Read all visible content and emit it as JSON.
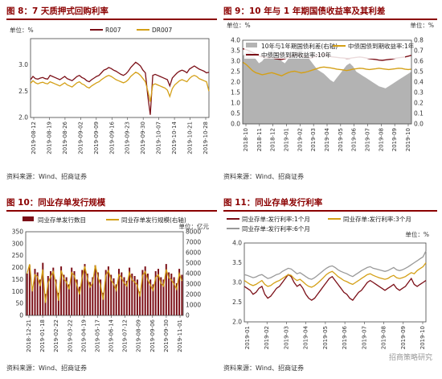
{
  "panels": [
    {
      "title": "图 8：7 天质押式回购利率",
      "source": "资料来源：Wind、招商证券",
      "chart_data": {
        "type": "line",
        "unit": "单位：%",
        "x_ticks": [
          "2019-08-12",
          "2019-08-19",
          "2019-08-26",
          "2019-09-02",
          "2019-09-09",
          "2019-09-16",
          "2019-09-23",
          "2019-09-30",
          "2019-10-07",
          "2019-10-14",
          "2019-10-21",
          "2019-10-28"
        ],
        "ylim": [
          2.0,
          3.5
        ],
        "y_ticks": [
          2.0,
          2.5,
          3.0,
          3.5
        ],
        "legend": "top",
        "series": [
          {
            "name": "R007",
            "color": "#7b0f17",
            "values": [
              2.72,
              2.78,
              2.74,
              2.73,
              2.75,
              2.76,
              2.74,
              2.73,
              2.8,
              2.78,
              2.76,
              2.74,
              2.72,
              2.75,
              2.78,
              2.74,
              2.72,
              2.7,
              2.74,
              2.78,
              2.8,
              2.76,
              2.74,
              2.7,
              2.68,
              2.72,
              2.75,
              2.78,
              2.8,
              2.85,
              2.9,
              2.92,
              2.95,
              2.93,
              2.9,
              2.88,
              2.85,
              2.82,
              2.8,
              2.83,
              2.88,
              2.95,
              3.0,
              3.05,
              3.02,
              2.98,
              2.9,
              2.85,
              2.4,
              2.05,
              2.8,
              2.82,
              2.8,
              2.78,
              2.76,
              2.74,
              2.72,
              2.6,
              2.75,
              2.8,
              2.85,
              2.88,
              2.9,
              2.88,
              2.85,
              2.92,
              2.95,
              2.98,
              2.95,
              2.92,
              2.9,
              2.88,
              2.85,
              2.86
            ]
          },
          {
            "name": "DR007",
            "color": "#d4a017",
            "values": [
              2.65,
              2.7,
              2.66,
              2.64,
              2.66,
              2.67,
              2.65,
              2.64,
              2.68,
              2.66,
              2.64,
              2.62,
              2.6,
              2.63,
              2.66,
              2.62,
              2.6,
              2.58,
              2.62,
              2.66,
              2.68,
              2.64,
              2.62,
              2.58,
              2.56,
              2.6,
              2.63,
              2.66,
              2.68,
              2.72,
              2.75,
              2.78,
              2.8,
              2.78,
              2.75,
              2.72,
              2.7,
              2.68,
              2.66,
              2.68,
              2.72,
              2.78,
              2.82,
              2.86,
              2.84,
              2.8,
              2.74,
              2.68,
              2.5,
              2.3,
              2.62,
              2.64,
              2.62,
              2.6,
              2.58,
              2.56,
              2.52,
              2.4,
              2.55,
              2.62,
              2.66,
              2.7,
              2.72,
              2.7,
              2.68,
              2.74,
              2.78,
              2.8,
              2.78,
              2.74,
              2.72,
              2.7,
              2.68,
              2.5
            ]
          }
        ]
      }
    },
    {
      "title": "图 9：10 年与 1 年期国债收益率及其利差",
      "source": "资料来源：Wind、招商证券",
      "chart_data": {
        "type": "area",
        "unit": "单位：%",
        "x_ticks": [
          "2018-10",
          "2018-11",
          "2018-12",
          "2019-01",
          "2019-02",
          "2019-03",
          "2019-04",
          "2019-05",
          "2019-06",
          "2019-07",
          "2019-08",
          "2019-09",
          "2019-10"
        ],
        "ylim_left": [
          0.0,
          4.0
        ],
        "y_ticks_left": [
          0.0,
          0.5,
          1.0,
          1.5,
          2.0,
          2.5,
          3.0,
          3.5,
          4.0
        ],
        "ylim_right": [
          0.0,
          0.8
        ],
        "y_ticks_right": [
          0.0,
          0.1,
          0.2,
          0.3,
          0.4,
          0.5,
          0.6,
          0.7,
          0.8
        ],
        "legend": "top",
        "series": [
          {
            "name": "10年与1年期国债利差(右轴)",
            "color": "#b3b3b3",
            "axis": "right",
            "values": [
              0.65,
              0.68,
              0.7,
              0.66,
              0.62,
              0.58,
              0.6,
              0.64,
              0.68,
              0.72,
              0.7,
              0.66,
              0.6,
              0.58,
              0.62,
              0.66,
              0.7,
              0.74,
              0.72,
              0.68,
              0.64,
              0.6,
              0.56,
              0.52,
              0.5,
              0.48,
              0.45,
              0.42,
              0.4,
              0.44,
              0.48,
              0.52,
              0.56,
              0.58,
              0.55,
              0.5,
              0.48,
              0.46,
              0.44,
              0.42,
              0.4,
              0.38,
              0.36,
              0.35,
              0.34,
              0.36,
              0.38,
              0.4,
              0.42,
              0.44,
              0.46,
              0.48,
              0.5
            ]
          },
          {
            "name": "中债国债到期收益率:1年",
            "color": "#d4a017",
            "axis": "left",
            "values": [
              2.95,
              2.85,
              2.7,
              2.55,
              2.45,
              2.4,
              2.35,
              2.38,
              2.42,
              2.45,
              2.4,
              2.35,
              2.3,
              2.38,
              2.45,
              2.5,
              2.52,
              2.48,
              2.44,
              2.46,
              2.5,
              2.55,
              2.6,
              2.65,
              2.7,
              2.72,
              2.7,
              2.68,
              2.65,
              2.62,
              2.6,
              2.58,
              2.55,
              2.58,
              2.62,
              2.64,
              2.66,
              2.65,
              2.62,
              2.6,
              2.62,
              2.64,
              2.66,
              2.64,
              2.62,
              2.6,
              2.62,
              2.64,
              2.66,
              2.65,
              2.62,
              2.6,
              2.62
            ]
          },
          {
            "name": "中债国债到期收益率:10年",
            "color": "#7b0f17",
            "axis": "left",
            "values": [
              3.6,
              3.55,
              3.5,
              3.42,
              3.35,
              3.25,
              3.2,
              3.18,
              3.15,
              3.18,
              3.12,
              3.1,
              3.08,
              3.12,
              3.18,
              3.22,
              3.28,
              3.3,
              3.25,
              3.22,
              3.18,
              3.15,
              3.2,
              3.28,
              3.32,
              3.3,
              3.26,
              3.22,
              3.2,
              3.18,
              3.16,
              3.15,
              3.13,
              3.14,
              3.16,
              3.18,
              3.2,
              3.18,
              3.15,
              3.12,
              3.1,
              3.08,
              3.05,
              3.04,
              3.06,
              3.08,
              3.1,
              3.14,
              3.16,
              3.18,
              3.2,
              3.24,
              3.28
            ]
          }
        ]
      }
    },
    {
      "title": "图 10：同业存单发行规模",
      "source": "资料来源：Wind、招商证券",
      "chart_data": {
        "type": "bar",
        "unit": "单位：亿元",
        "x_ticks": [
          "2018-12-21",
          "2019-01-18",
          "2019-02-22",
          "2019-03-22",
          "2019-04-19",
          "2019-05-17",
          "2019-06-14",
          "2019-07-12",
          "2019-08-09",
          "2019-09-06",
          "2019-09-30",
          "2019-11-01"
        ],
        "ylim_left": [
          0,
          350
        ],
        "y_ticks_left": [
          0,
          50,
          100,
          150,
          200,
          250,
          300,
          350
        ],
        "ylim_right": [
          0,
          8000
        ],
        "y_ticks_right": [
          0,
          1000,
          2000,
          3000,
          4000,
          5000,
          6000,
          7000,
          8000
        ],
        "legend": "top",
        "series": [
          {
            "name": "同业存单发行数目",
            "color": "#7b0f17",
            "axis": "left",
            "values": [
              175,
              210,
              120,
              195,
              180,
              150,
              220,
              90,
              165,
              185,
              200,
              150,
              95,
              205,
              170,
              160,
              130,
              200,
              185,
              150,
              120,
              190,
              215,
              175,
              140,
              160,
              210,
              180,
              150,
              95,
              190,
              205,
              170,
              155,
              130,
              195,
              180,
              160,
              145,
              200,
              175,
              165,
              150,
              100,
              190,
              205,
              175,
              150,
              130,
              185,
              195,
              160,
              150,
              215,
              180,
              175,
              160,
              135,
              195,
              170
            ]
          },
          {
            "name": "同业存单发行规模(右轴)",
            "color": "#d4a017",
            "axis": "right",
            "values": [
              4000,
              4900,
              2300,
              3900,
              3700,
              2800,
              4400,
              1200,
              3100,
              3700,
              4200,
              3000,
              1400,
              4300,
              3500,
              3200,
              2500,
              4100,
              3800,
              2900,
              2000,
              3600,
              4700,
              3500,
              2700,
              3100,
              4800,
              3700,
              2900,
              1500,
              3800,
              4300,
              3400,
              3000,
              2400,
              3900,
              3600,
              3100,
              2800,
              4100,
              3400,
              3200,
              2900,
              1800,
              3800,
              4200,
              3400,
              2900,
              2400,
              3600,
              3900,
              3100,
              2800,
              4400,
              3600,
              3400,
              3000,
              2500,
              4000,
              3300
            ]
          }
        ]
      }
    },
    {
      "title": "图 11：同业存单发行利率",
      "source": "资料来源：Wind、招商证券",
      "watermark": "招商策略研究",
      "chart_data": {
        "type": "line",
        "unit": "单位：%",
        "x_ticks": [
          "2019-01",
          "2019-02",
          "2019-03",
          "2019-04",
          "2019-05",
          "2019-06",
          "2019-07",
          "2019-08",
          "2019-09",
          "2019-10"
        ],
        "ylim": [
          2.0,
          4.0
        ],
        "y_ticks": [
          2.0,
          2.5,
          3.0,
          3.5,
          4.0
        ],
        "legend": "top",
        "series": [
          {
            "name": "同业存单:发行利率:1个月",
            "color": "#7b0f17",
            "values": [
              2.9,
              2.85,
              2.8,
              2.7,
              2.75,
              2.85,
              2.9,
              2.7,
              2.6,
              2.65,
              2.75,
              2.85,
              2.9,
              3.0,
              3.1,
              3.2,
              3.15,
              3.0,
              2.9,
              2.95,
              2.85,
              2.7,
              2.6,
              2.55,
              2.6,
              2.7,
              2.8,
              2.9,
              3.0,
              3.1,
              3.15,
              3.05,
              2.95,
              2.85,
              2.75,
              2.7,
              2.6,
              2.55,
              2.65,
              2.75,
              2.8,
              2.9,
              3.0,
              3.05,
              3.0,
              2.95,
              2.9,
              2.85,
              2.8,
              2.85,
              2.9,
              2.95,
              2.85,
              2.8,
              2.85,
              2.9,
              3.0,
              3.1,
              2.95,
              2.9,
              2.95,
              3.0,
              3.05
            ]
          },
          {
            "name": "同业存单:发行利率:3个月",
            "color": "#d4a017",
            "values": [
              3.05,
              3.0,
              2.95,
              2.92,
              2.95,
              3.0,
              3.05,
              2.95,
              2.9,
              2.92,
              2.98,
              3.02,
              3.05,
              3.1,
              3.15,
              3.2,
              3.18,
              3.1,
              3.05,
              3.08,
              3.02,
              2.95,
              2.9,
              2.88,
              2.92,
              2.98,
              3.05,
              3.12,
              3.2,
              3.25,
              3.28,
              3.22,
              3.15,
              3.1,
              3.05,
              3.02,
              2.98,
              2.95,
              3.0,
              3.05,
              3.1,
              3.15,
              3.2,
              3.22,
              3.18,
              3.15,
              3.12,
              3.1,
              3.08,
              3.1,
              3.15,
              3.18,
              3.12,
              3.1,
              3.12,
              3.15,
              3.2,
              3.25,
              3.22,
              3.3,
              3.35,
              3.4,
              3.5
            ]
          },
          {
            "name": "同业存单:发行利率:6个月",
            "color": "#999999",
            "values": [
              3.2,
              3.18,
              3.15,
              3.12,
              3.14,
              3.18,
              3.2,
              3.15,
              3.1,
              3.12,
              3.16,
              3.2,
              3.22,
              3.28,
              3.32,
              3.36,
              3.34,
              3.28,
              3.22,
              3.25,
              3.2,
              3.15,
              3.1,
              3.08,
              3.12,
              3.18,
              3.24,
              3.3,
              3.36,
              3.4,
              3.42,
              3.38,
              3.32,
              3.28,
              3.25,
              3.22,
              3.18,
              3.15,
              3.2,
              3.25,
              3.3,
              3.34,
              3.38,
              3.4,
              3.36,
              3.34,
              3.32,
              3.3,
              3.28,
              3.3,
              3.34,
              3.38,
              3.32,
              3.3,
              3.32,
              3.36,
              3.4,
              3.45,
              3.5,
              3.55,
              3.6,
              3.65,
              3.8
            ]
          }
        ]
      }
    }
  ]
}
